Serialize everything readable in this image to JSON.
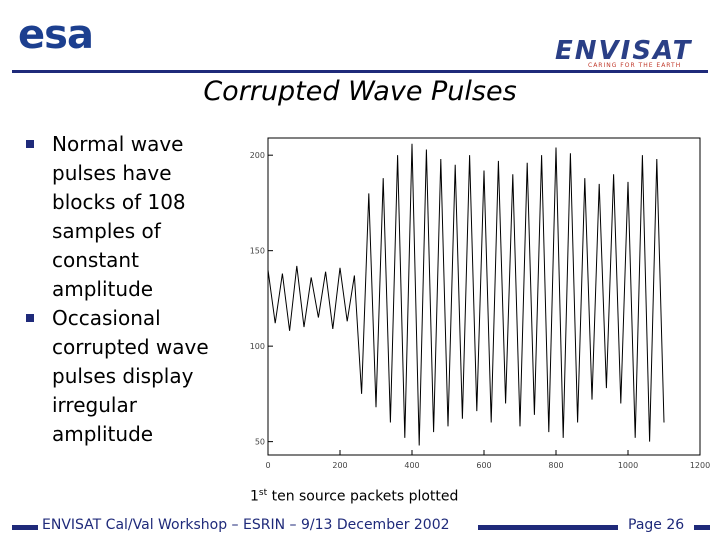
{
  "header": {
    "logo_left": "esa",
    "logo_right": "ENVISAT",
    "tagline": "CARING FOR THE EARTH"
  },
  "title": "Corrupted Wave Pulses",
  "bullets": [
    "Normal wave pulses have blocks of 108 samples of constant amplitude",
    "Occasional corrupted wave pulses display irregular amplitude"
  ],
  "caption": {
    "number": "1",
    "superscript": "st",
    "text": " ten source packets plotted"
  },
  "footer": {
    "text": "ENVISAT Cal/Val Workshop – ESRIN – 9/13 December 2002",
    "page": "Page 26"
  },
  "chart_data": {
    "type": "line",
    "color": "#000000",
    "x": [
      0,
      20,
      40,
      60,
      80,
      100,
      120,
      140,
      160,
      180,
      200,
      220,
      240,
      260,
      280,
      300,
      320,
      340,
      360,
      380,
      400,
      420,
      440,
      460,
      480,
      500,
      520,
      540,
      560,
      580,
      600,
      620,
      640,
      660,
      680,
      700,
      720,
      740,
      760,
      780,
      800,
      820,
      840,
      860,
      880,
      900,
      920,
      940,
      960,
      980,
      1000,
      1020,
      1040,
      1060,
      1080,
      1100
    ],
    "values": [
      140,
      112,
      138,
      108,
      142,
      110,
      136,
      115,
      139,
      109,
      141,
      113,
      137,
      75,
      180,
      68,
      188,
      60,
      200,
      52,
      206,
      48,
      203,
      55,
      198,
      58,
      195,
      62,
      200,
      66,
      192,
      60,
      197,
      70,
      190,
      58,
      196,
      64,
      200,
      55,
      204,
      52,
      201,
      60,
      188,
      72,
      185,
      78,
      190,
      70,
      186,
      52,
      200,
      50,
      198,
      60
    ],
    "xlim": [
      0,
      1200
    ],
    "ylim": [
      43,
      209
    ],
    "xticks": [
      0,
      200,
      400,
      600,
      800,
      1000,
      1200
    ],
    "yticks": [
      50,
      100,
      150,
      200
    ]
  }
}
